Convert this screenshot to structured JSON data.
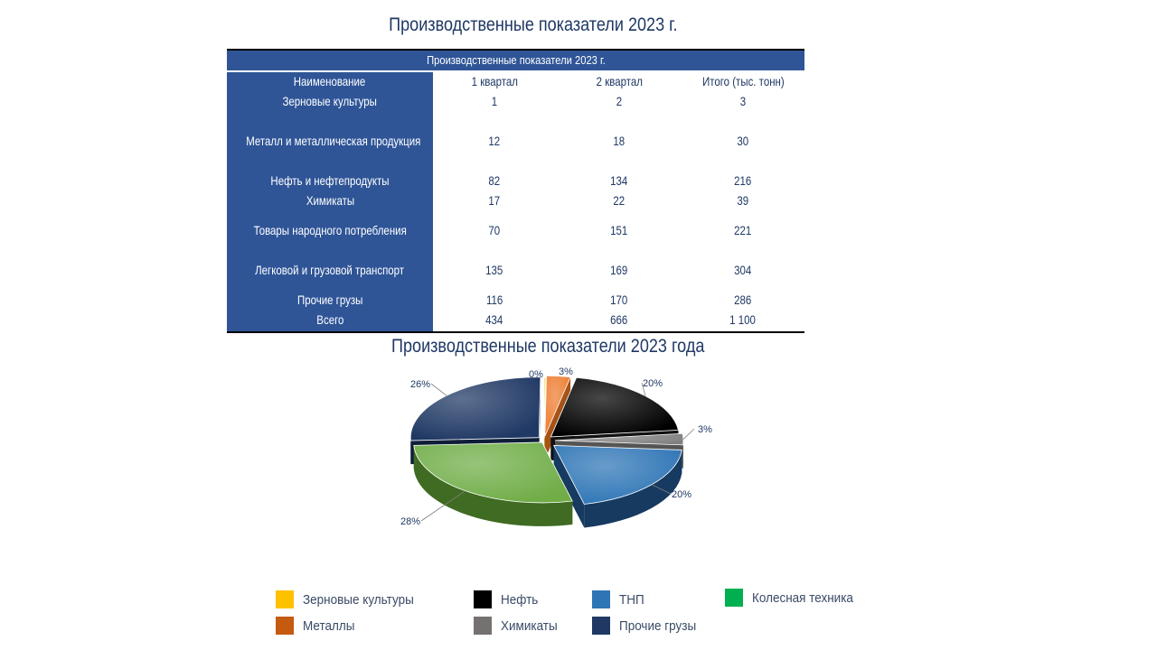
{
  "title": "Производственные показатели 2023 г.",
  "table": {
    "caption": "Производственные показатели 2023 г.",
    "headers": [
      "Наименование",
      "1 квартал",
      "2 квартал",
      "Итого (тыс. тонн)"
    ],
    "rows": [
      [
        "Зерновые культуры",
        "1",
        "2",
        "3"
      ],
      [
        "Металл и металлическая продукция",
        "12",
        "18",
        "30"
      ],
      [
        "Нефть и нефтепродукты",
        "82",
        "134",
        "216"
      ],
      [
        "Химикаты",
        "17",
        "22",
        "39"
      ],
      [
        "Товары народного потребления",
        "70",
        "151",
        "221"
      ],
      [
        "Легковой и грузовой транспорт",
        "135",
        "169",
        "304"
      ],
      [
        "Прочие грузы",
        "116",
        "170",
        "286"
      ],
      [
        "Всего",
        "434",
        "666",
        "1 100"
      ]
    ]
  },
  "chart_data": {
    "type": "pie",
    "title": "Производственные показатели 2023 года",
    "slices": [
      {
        "name": "Зерновые культуры",
        "value": 0,
        "label": "0%",
        "color": "#ffc000"
      },
      {
        "name": "Металлы",
        "value": 3,
        "label": "3%",
        "color": "#ed7d31"
      },
      {
        "name": "Нефть",
        "value": 20,
        "label": "20%",
        "color": "#000000"
      },
      {
        "name": "Химикаты",
        "value": 3,
        "label": "3%",
        "color": "#808080"
      },
      {
        "name": "ТНП",
        "value": 20,
        "label": "20%",
        "color": "#2e75b6"
      },
      {
        "name": "Колесная техника",
        "value": 28,
        "label": "28%",
        "color": "#70ad47"
      },
      {
        "name": "Прочие грузы",
        "value": 26,
        "label": "26%",
        "color": "#1f3864"
      }
    ],
    "legend_position": "bottom",
    "style": "3d-exploded"
  },
  "legend": [
    {
      "label": "Зерновые культуры",
      "color": "#ffc000"
    },
    {
      "label": "Металлы",
      "color": "#c55a11"
    },
    {
      "label": "Нефть",
      "color": "#000000"
    },
    {
      "label": "Химикаты",
      "color": "#767171"
    },
    {
      "label": "ТНП",
      "color": "#2e75b6"
    },
    {
      "label": "Прочие грузы",
      "color": "#203864"
    },
    {
      "label": "Колесная техника",
      "color": "#00b050"
    }
  ]
}
